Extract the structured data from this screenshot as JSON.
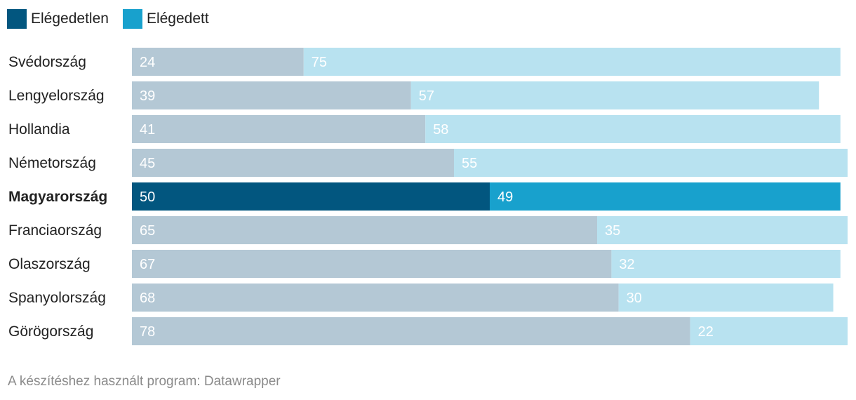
{
  "chart_data": {
    "type": "bar",
    "orientation": "horizontal",
    "stacked": true,
    "categories": [
      "Svédország",
      "Lengyelország",
      "Hollandia",
      "Németország",
      "Magyarország",
      "Franciaország",
      "Olaszország",
      "Spanyolország",
      "Görögország"
    ],
    "highlighted_category": "Magyarország",
    "series": [
      {
        "name": "Elégedetlen",
        "values": [
          24,
          39,
          41,
          45,
          50,
          65,
          67,
          68,
          78
        ]
      },
      {
        "name": "Elégedett",
        "values": [
          75,
          57,
          58,
          55,
          49,
          35,
          32,
          30,
          22
        ]
      }
    ],
    "xlim": [
      0,
      100
    ],
    "legend_position": "top-left",
    "grid": false
  },
  "colors": {
    "highlight": [
      "#02567f",
      "#18a1cd"
    ],
    "muted": [
      "#b4c8d5",
      "#b8e2f0"
    ]
  },
  "footer": "A készítéshez használt program: Datawrapper"
}
